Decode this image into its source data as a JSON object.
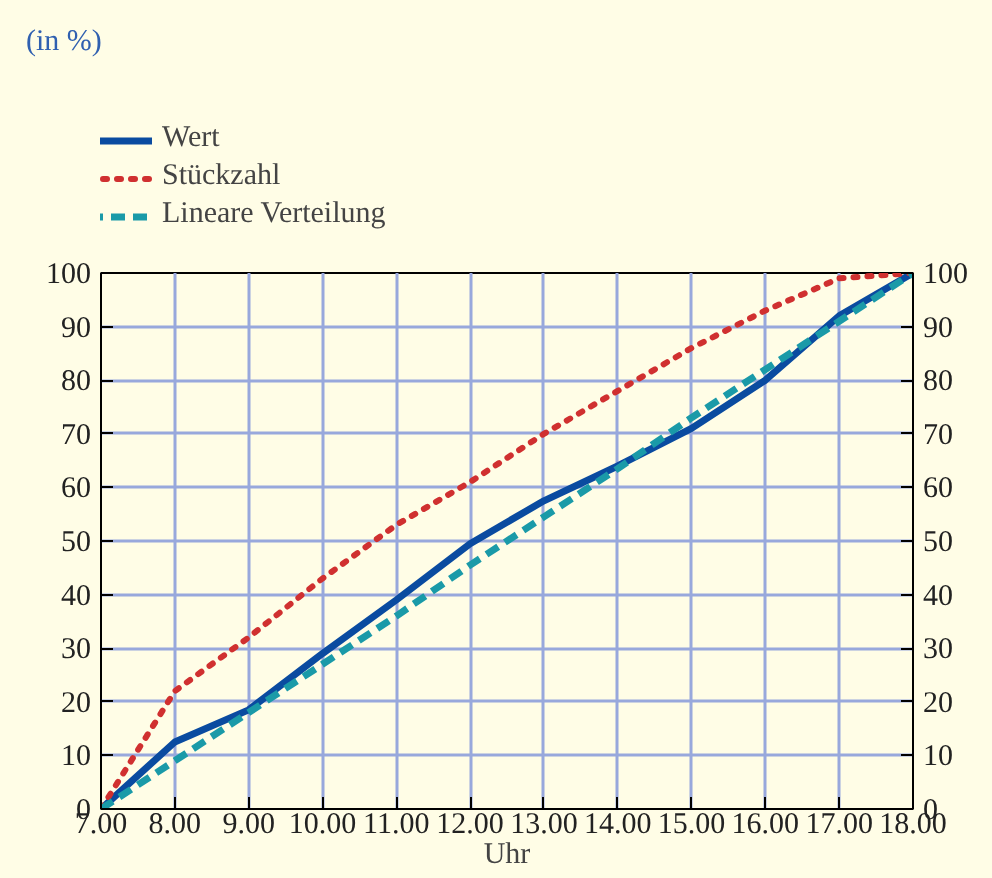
{
  "chart_data": {
    "type": "line",
    "annotations": [
      "(in %)"
    ],
    "xlabel": "Uhr",
    "x": [
      7,
      8,
      9,
      10,
      11,
      12,
      13,
      14,
      15,
      16,
      17,
      18
    ],
    "series": [
      {
        "name": "Wert",
        "color": "#0a4ba0",
        "line_style": "solid",
        "values": [
          0,
          12.5,
          18.5,
          29,
          39,
          49.5,
          57.5,
          64,
          71,
          80,
          92,
          100
        ]
      },
      {
        "name": "Stückzahl",
        "color": "#d03030",
        "line_style": "dotted",
        "values": [
          0,
          22,
          32,
          43,
          53,
          61,
          70,
          78,
          86,
          93,
          99,
          100
        ]
      },
      {
        "name": "Lineare Verteilung",
        "color": "#1a9aa8",
        "line_style": "dashed",
        "values": [
          0,
          9,
          18,
          27,
          36,
          45.5,
          54.5,
          63.5,
          73,
          82,
          91,
          100
        ]
      }
    ],
    "xlim": [
      7,
      18
    ],
    "xticks": [
      {
        "value": 7,
        "label": "7.00"
      },
      {
        "value": 8,
        "label": "8.00"
      },
      {
        "value": 9,
        "label": "9.00"
      },
      {
        "value": 10,
        "label": "10.00"
      },
      {
        "value": 11,
        "label": "11.00"
      },
      {
        "value": 12,
        "label": "12.00"
      },
      {
        "value": 13,
        "label": "13.00"
      },
      {
        "value": 14,
        "label": "14.00"
      },
      {
        "value": 15,
        "label": "15.00"
      },
      {
        "value": 16,
        "label": "16.00"
      },
      {
        "value": 17,
        "label": "17.00"
      },
      {
        "value": 18,
        "label": "18.00"
      }
    ],
    "ylim": [
      0,
      100
    ],
    "yticks": [
      0,
      10,
      20,
      30,
      40,
      50,
      60,
      70,
      80,
      90,
      100
    ],
    "y2lim": [
      0,
      100
    ],
    "y2ticks": [
      0,
      10,
      20,
      30,
      40,
      50,
      60,
      70,
      80,
      90,
      100
    ],
    "grid": true,
    "legend": "top left",
    "marker": "none"
  }
}
